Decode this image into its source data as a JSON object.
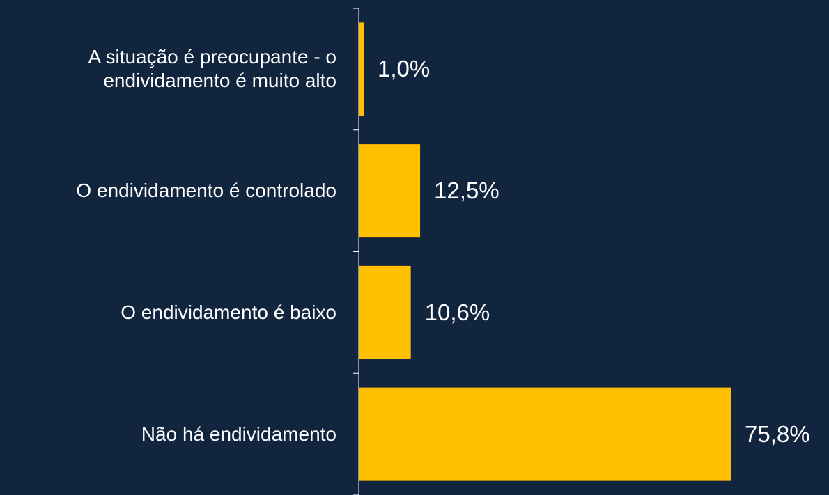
{
  "chart_data": {
    "type": "bar",
    "orientation": "horizontal",
    "categories": [
      "A situação é preocupante - o\nendividamento é muito alto",
      "O endividamento é controlado",
      "O endividamento é baixo",
      "Não há endividamento"
    ],
    "values": [
      1.0,
      12.5,
      10.6,
      75.8
    ],
    "value_labels": [
      "1,0%",
      "12,5%",
      "10,6%",
      "75,8%"
    ],
    "color": "#ffc000"
  }
}
